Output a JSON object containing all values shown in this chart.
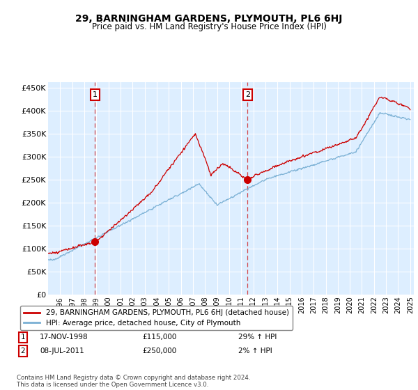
{
  "title": "29, BARNINGHAM GARDENS, PLYMOUTH, PL6 6HJ",
  "subtitle": "Price paid vs. HM Land Registry's House Price Index (HPI)",
  "yticks": [
    0,
    50000,
    100000,
    150000,
    200000,
    250000,
    300000,
    350000,
    400000,
    450000
  ],
  "ytick_labels": [
    "£0",
    "£50K",
    "£100K",
    "£150K",
    "£200K",
    "£250K",
    "£300K",
    "£350K",
    "£400K",
    "£450K"
  ],
  "ylim": [
    0,
    462000
  ],
  "xlim_start": 1995.0,
  "xlim_end": 2025.3,
  "bg_color": "#ddeeff",
  "grid_color": "#ffffff",
  "sale1_x": 1998.88,
  "sale1_y": 115000,
  "sale2_x": 2011.52,
  "sale2_y": 250000,
  "line1_color": "#cc0000",
  "line2_color": "#7ab0d4",
  "legend1_label": "29, BARNINGHAM GARDENS, PLYMOUTH, PL6 6HJ (detached house)",
  "legend2_label": "HPI: Average price, detached house, City of Plymouth",
  "sale1_date": "17-NOV-1998",
  "sale1_price": "£115,000",
  "sale1_hpi": "29% ↑ HPI",
  "sale2_date": "08-JUL-2011",
  "sale2_price": "£250,000",
  "sale2_hpi": "2% ↑ HPI",
  "footer": "Contains HM Land Registry data © Crown copyright and database right 2024.\nThis data is licensed under the Open Government Licence v3.0.",
  "xtick_years": [
    1996,
    1997,
    1998,
    1999,
    2000,
    2001,
    2002,
    2003,
    2004,
    2005,
    2006,
    2007,
    2008,
    2009,
    2010,
    2011,
    2012,
    2013,
    2014,
    2015,
    2016,
    2017,
    2018,
    2019,
    2020,
    2021,
    2022,
    2023,
    2024,
    2025
  ]
}
